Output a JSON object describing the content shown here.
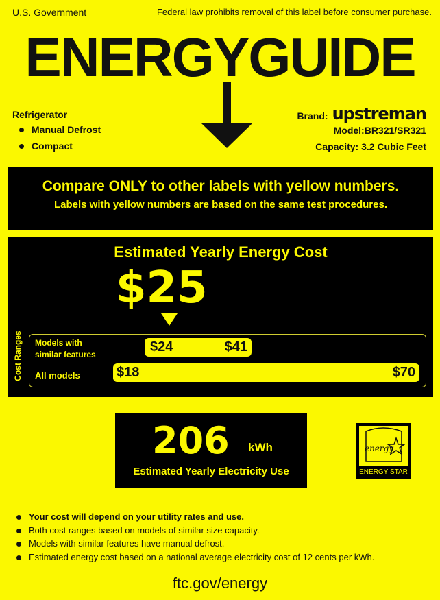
{
  "header": {
    "left": "U.S. Government",
    "right": "Federal law prohibits removal of this label before consumer purchase.",
    "title": "ENERGYGUIDE"
  },
  "product": {
    "type": "Refrigerator",
    "features": [
      "Manual Defrost",
      "Compact"
    ]
  },
  "brand": {
    "label": "Brand:",
    "name": "upstreman",
    "model": "Model:BR321/SR321",
    "capacity": "Capacity: 3.2 Cubic Feet"
  },
  "compare": {
    "line1": "Compare ONLY to other labels with yellow numbers.",
    "line2": "Labels with yellow numbers are based on the same test procedures."
  },
  "cost": {
    "title": "Estimated Yearly Energy Cost",
    "value": "$25",
    "value_number": 25,
    "ranges_label": "Cost Ranges",
    "similar": {
      "label_line1": "Models with",
      "label_line2": "similar features",
      "min": "$24",
      "max": "$41"
    },
    "all": {
      "label": "All models",
      "min": "$18",
      "max": "$70"
    }
  },
  "electricity": {
    "value": "206",
    "unit": "kWh",
    "label": "Estimated Yearly Electricity Use"
  },
  "energy_star": {
    "logo_text": "energy",
    "label": "ENERGY STAR"
  },
  "notes": [
    "Your cost will depend on your utility rates and use.",
    "Both cost ranges based on models of similar size capacity.",
    "Models with similar features have manual defrost.",
    "Estimated energy cost based on a national average electricity cost of 12 cents per kWh."
  ],
  "footer": "ftc.gov/energy",
  "colors": {
    "label_yellow": "#fbf800",
    "black": "#000000"
  }
}
